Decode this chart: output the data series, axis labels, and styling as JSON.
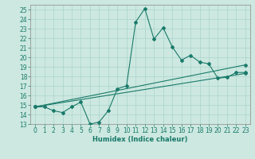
{
  "title": "",
  "xlabel": "Humidex (Indice chaleur)",
  "bg_color": "#cce8e0",
  "grid_color": "#aad4cc",
  "line_color": "#1a7a6a",
  "xlim": [
    -0.5,
    23.5
  ],
  "ylim": [
    13,
    25.5
  ],
  "yticks": [
    13,
    14,
    15,
    16,
    17,
    18,
    19,
    20,
    21,
    22,
    23,
    24,
    25
  ],
  "xticks": [
    0,
    1,
    2,
    3,
    4,
    5,
    6,
    7,
    8,
    9,
    10,
    11,
    12,
    13,
    14,
    15,
    16,
    17,
    18,
    19,
    20,
    21,
    22,
    23
  ],
  "line1_x": [
    0,
    1,
    2,
    3,
    4,
    5,
    6,
    7,
    8,
    9,
    10,
    11,
    12,
    13,
    14,
    15,
    16,
    17,
    18,
    19,
    20,
    21,
    22,
    23
  ],
  "line1_y": [
    14.8,
    14.8,
    14.4,
    14.2,
    14.8,
    15.3,
    13.0,
    13.2,
    14.4,
    16.7,
    17.0,
    23.7,
    25.1,
    21.9,
    23.1,
    21.1,
    19.7,
    20.2,
    19.5,
    19.3,
    17.8,
    17.9,
    18.4,
    18.4
  ],
  "line2_x": [
    0,
    23
  ],
  "line2_y": [
    14.8,
    19.2
  ],
  "line3_x": [
    0,
    23
  ],
  "line3_y": [
    14.8,
    18.3
  ],
  "marker": "D",
  "markersize": 2.0,
  "linewidth": 0.8,
  "tick_fontsize": 5.5,
  "xlabel_fontsize": 6.0
}
